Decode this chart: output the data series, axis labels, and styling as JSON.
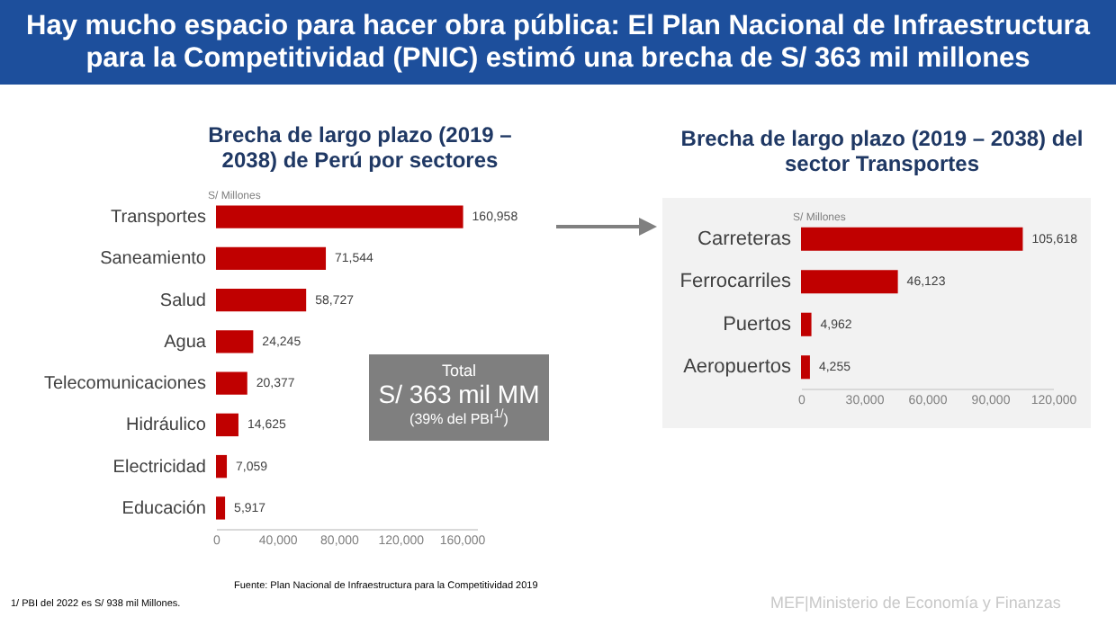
{
  "chart_data": [
    {
      "type": "bar",
      "orientation": "horizontal",
      "title": "Brecha de largo plazo (2019 – 2038) de Perú por sectores",
      "xlabel": "S/ Millones",
      "categories": [
        "Transportes",
        "Saneamiento",
        "Salud",
        "Agua",
        "Telecomunicaciones",
        "Hidráulico",
        "Electricidad",
        "Educación"
      ],
      "values": [
        160958,
        71544,
        58727,
        24245,
        20377,
        14625,
        7059,
        5917
      ],
      "color": "#c00000",
      "value_labels": [
        "160,958",
        "71,544",
        "58,727",
        "24,245",
        "20,377",
        "14,625",
        "7,059",
        "5,917"
      ],
      "xlim": [
        0,
        170000
      ],
      "xticks": [
        0,
        {
          "value": 40000,
          "label": "40,000"
        },
        {
          "value": 80000,
          "label": "80,000"
        },
        {
          "value": 120000,
          "label": "120,000"
        },
        {
          "value": 160000,
          "label": "160,000"
        }
      ],
      "grid": false,
      "annotations": [
        "Hay mucho espacio para hacer obra pública: El Plan Nacional de Infraestructura para la Competitividad (PNIC) estimó una brecha de S/ 363 mil millones",
        "Total",
        "S/ 363 mil MM",
        "(39% del PBI$^{1/}$)",
        "1/ PBI del 2022 es S/ 938 mil Millones.",
        "Fuente: Plan Nacional de Infraestructura para la Competitividad 2019",
        "MEF|Ministerio de Economía y Finanzas"
      ]
    },
    {
      "type": "bar",
      "orientation": "horizontal",
      "title": "Brecha de largo plazo (2019 – 2038) del sector Transportes",
      "xlabel": "S/ Millones",
      "categories": [
        "Carreteras",
        "Ferrocarriles",
        "Puertos",
        "Aeropuertos"
      ],
      "values": [
        105618,
        46123,
        4962,
        4255
      ],
      "color": "#c00000",
      "value_labels": [
        "105,618",
        "46,123",
        "4,962",
        "4,255"
      ],
      "xlim": [
        0,
        120000
      ],
      "xticks": [
        0,
        {
          "value": 30000,
          "label": "30,000"
        },
        {
          "value": 60000,
          "label": "60,000"
        },
        {
          "value": 90000,
          "label": "90,000"
        },
        {
          "value": 120000,
          "label": "120,000"
        }
      ],
      "grid": false
    }
  ]
}
